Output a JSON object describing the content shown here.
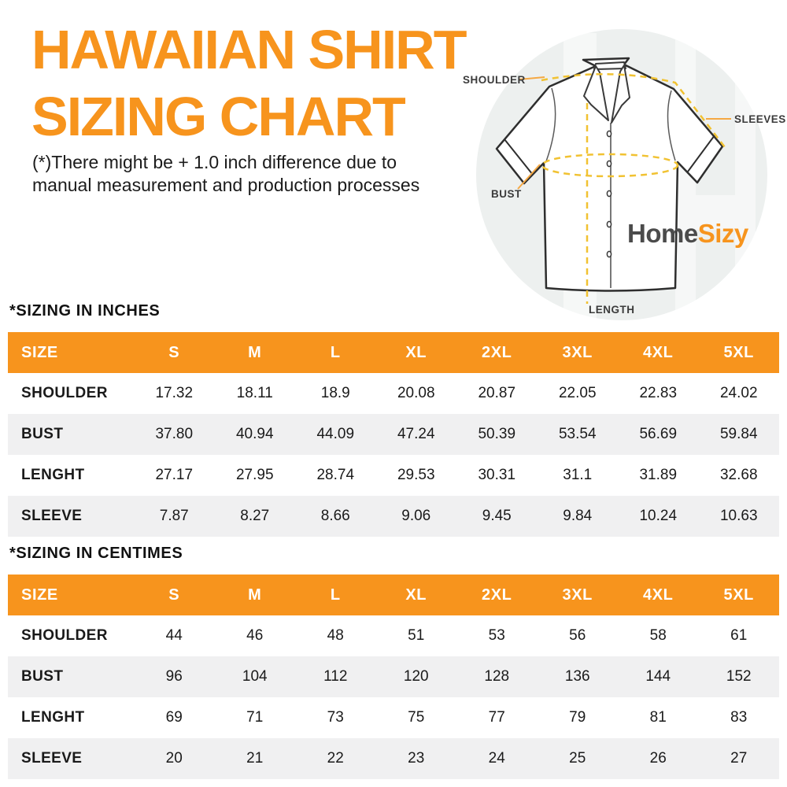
{
  "title": {
    "line1": "HAWAIIAN SHIRT",
    "line2": "SIZING CHART"
  },
  "disclaimer": {
    "line1": "(*)There might be + 1.0 inch difference due to",
    "line2": "manual measurement and production processes"
  },
  "diagram": {
    "labels": {
      "shoulder": "SHOULDER",
      "sleeves": "SLEEVES",
      "bust": "BUST",
      "length": "LENGTH"
    },
    "logo": {
      "part1": "Home",
      "part2": "Sizy"
    }
  },
  "colors": {
    "accent_orange": "#F7941D",
    "dash_yellow": "#F1C232",
    "connector_orange": "#F5A843",
    "circle_background": "#EDF0EF",
    "row_alt": "#F0F0F1",
    "logo_gray": "#4B4B4B",
    "header_text": "#FFFFFF"
  },
  "tables": [
    {
      "section_label": "*SIZING IN INCHES",
      "headers": [
        "SIZE",
        "S",
        "M",
        "L",
        "XL",
        "2XL",
        "3XL",
        "4XL",
        "5XL"
      ],
      "rows": [
        {
          "label": "SHOULDER",
          "values": [
            "17.32",
            "18.11",
            "18.9",
            "20.08",
            "20.87",
            "22.05",
            "22.83",
            "24.02"
          ]
        },
        {
          "label": "BUST",
          "values": [
            "37.80",
            "40.94",
            "44.09",
            "47.24",
            "50.39",
            "53.54",
            "56.69",
            "59.84"
          ]
        },
        {
          "label": "LENGHT",
          "values": [
            "27.17",
            "27.95",
            "28.74",
            "29.53",
            "30.31",
            "31.1",
            "31.89",
            "32.68"
          ]
        },
        {
          "label": "SLEEVE",
          "values": [
            "7.87",
            "8.27",
            "8.66",
            "9.06",
            "9.45",
            "9.84",
            "10.24",
            "10.63"
          ]
        }
      ]
    },
    {
      "section_label": "*SIZING IN CENTIMES",
      "headers": [
        "SIZE",
        "S",
        "M",
        "L",
        "XL",
        "2XL",
        "3XL",
        "4XL",
        "5XL"
      ],
      "rows": [
        {
          "label": "SHOULDER",
          "values": [
            "44",
            "46",
            "48",
            "51",
            "53",
            "56",
            "58",
            "61"
          ]
        },
        {
          "label": "BUST",
          "values": [
            "96",
            "104",
            "112",
            "120",
            "128",
            "136",
            "144",
            "152"
          ]
        },
        {
          "label": "LENGHT",
          "values": [
            "69",
            "71",
            "73",
            "75",
            "77",
            "79",
            "81",
            "83"
          ]
        },
        {
          "label": "SLEEVE",
          "values": [
            "20",
            "21",
            "22",
            "23",
            "24",
            "25",
            "26",
            "27"
          ]
        }
      ]
    }
  ]
}
